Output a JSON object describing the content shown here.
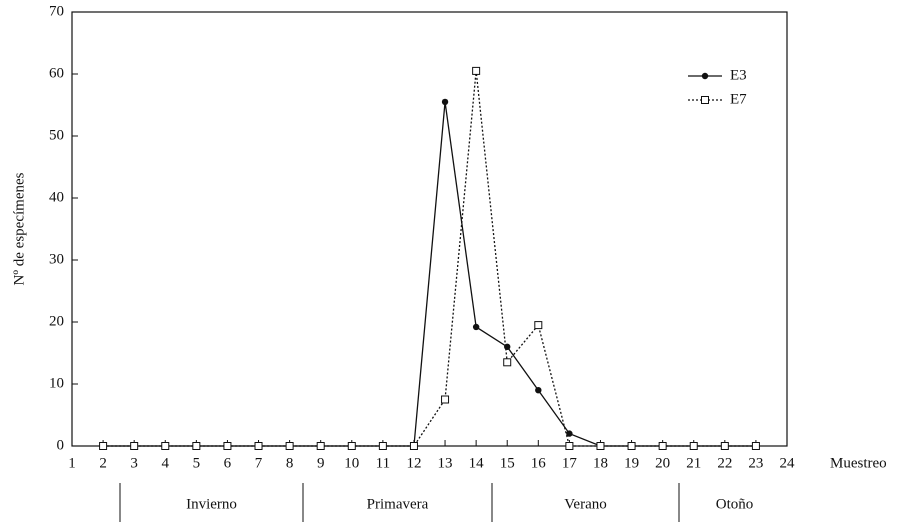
{
  "chart_data": {
    "type": "line",
    "x_label": "Muestreo",
    "y_label": "Nº de especímenes",
    "x": [
      2,
      3,
      4,
      5,
      6,
      7,
      8,
      9,
      10,
      11,
      12,
      13,
      14,
      15,
      16,
      17,
      18,
      19,
      20,
      21,
      22,
      23
    ],
    "series": [
      {
        "name": "E3",
        "color": "#111111",
        "values": [
          0,
          0,
          0,
          0,
          0,
          0,
          0,
          0,
          0,
          0,
          0,
          55.5,
          19.2,
          16,
          9,
          2,
          0,
          0,
          0,
          0,
          0,
          0
        ]
      },
      {
        "name": "E7",
        "color": "#111111",
        "values": [
          0,
          0,
          0,
          0,
          0,
          0,
          0,
          0,
          0,
          0,
          0,
          7.5,
          60.5,
          13.5,
          19.5,
          0,
          0,
          0,
          0,
          0,
          0,
          0
        ]
      }
    ],
    "xlim": [
      1,
      24
    ],
    "xticks": [
      1,
      2,
      3,
      4,
      5,
      6,
      7,
      8,
      9,
      10,
      11,
      12,
      13,
      14,
      15,
      16,
      17,
      18,
      19,
      20,
      21,
      22,
      23,
      24
    ],
    "ylim": [
      0,
      70
    ],
    "yticks": [
      0,
      10,
      20,
      30,
      40,
      50,
      60,
      70
    ],
    "seasons": [
      "Invierno",
      "Primavera",
      "Verano",
      "Otoño"
    ]
  }
}
